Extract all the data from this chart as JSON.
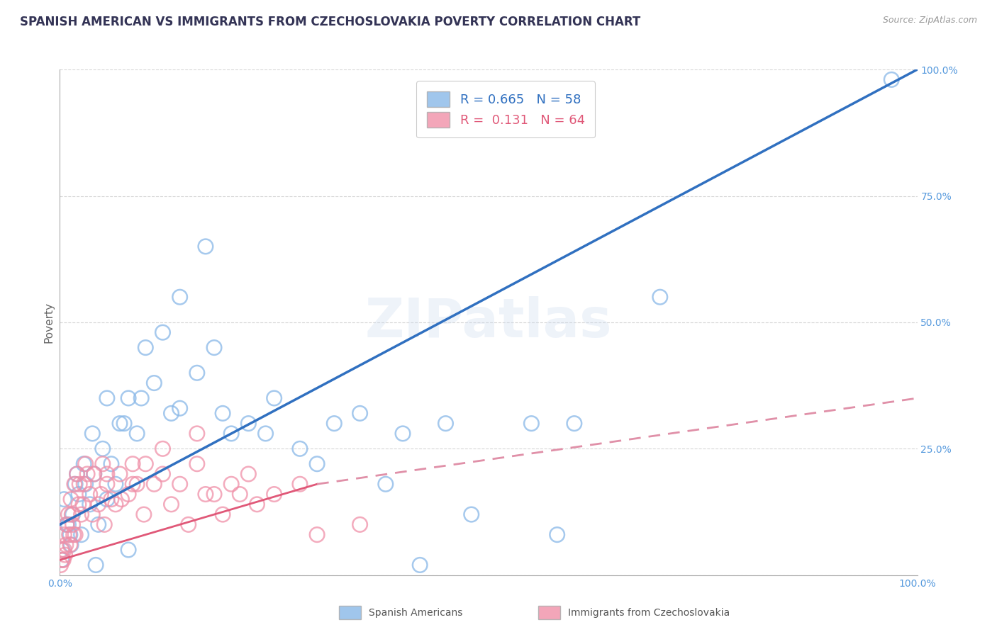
{
  "title": "SPANISH AMERICAN VS IMMIGRANTS FROM CZECHOSLOVAKIA POVERTY CORRELATION CHART",
  "source": "Source: ZipAtlas.com",
  "ylabel": "Poverty",
  "watermark": "ZIPatlas",
  "series1_label": "Spanish Americans",
  "series2_label": "Immigrants from Czechoslovakia",
  "series1_color": "#89b8e8",
  "series2_color": "#f090a8",
  "series1_line_color": "#3070c0",
  "series2_line_color": "#e05878",
  "series2_dash_color": "#e090a8",
  "title_fontsize": 12,
  "axis_label_fontsize": 11,
  "tick_fontsize": 10,
  "background_color": "#ffffff",
  "grid_color": "#cccccc",
  "xlim": [
    0,
    100
  ],
  "ylim": [
    0,
    100
  ],
  "tick_color": "#5599dd",
  "blue_line": [
    0,
    100,
    10,
    100
  ],
  "pink_solid_line": [
    0,
    30,
    3,
    18
  ],
  "pink_dash_line": [
    30,
    100,
    18,
    35
  ],
  "legend_R1": "R = 0.665",
  "legend_N1": "N = 58",
  "legend_R2": "R =  0.131",
  "legend_N2": "N = 64",
  "blue1_x": [
    0.5,
    1.0,
    1.2,
    1.5,
    2.0,
    2.2,
    2.5,
    3.0,
    3.5,
    4.0,
    4.5,
    5.0,
    5.5,
    6.0,
    6.5,
    7.0,
    8.0,
    9.0,
    10.0,
    11.0,
    12.0,
    13.0,
    14.0,
    16.0,
    18.0,
    20.0,
    22.0,
    25.0,
    28.0,
    32.0,
    35.0,
    40.0,
    45.0,
    55.0,
    60.0,
    70.0,
    97.0,
    0.3,
    0.8,
    1.8,
    2.8,
    3.8,
    5.5,
    7.5,
    9.5,
    14.0,
    19.0,
    24.0,
    30.0,
    38.0,
    48.0,
    58.0,
    0.2,
    1.3,
    4.2,
    8.0,
    17.0,
    42.0
  ],
  "blue1_y": [
    15.0,
    10.0,
    8.0,
    12.0,
    20.0,
    16.0,
    8.0,
    18.0,
    14.0,
    20.0,
    10.0,
    25.0,
    15.0,
    22.0,
    18.0,
    30.0,
    35.0,
    28.0,
    45.0,
    38.0,
    48.0,
    32.0,
    55.0,
    40.0,
    45.0,
    28.0,
    30.0,
    35.0,
    25.0,
    30.0,
    32.0,
    28.0,
    30.0,
    30.0,
    30.0,
    55.0,
    98.0,
    5.0,
    10.0,
    18.0,
    22.0,
    28.0,
    35.0,
    30.0,
    35.0,
    33.0,
    32.0,
    28.0,
    22.0,
    18.0,
    12.0,
    8.0,
    3.0,
    6.0,
    2.0,
    5.0,
    65.0,
    2.0
  ],
  "pink2_x": [
    0.2,
    0.4,
    0.5,
    0.6,
    0.8,
    1.0,
    1.1,
    1.2,
    1.3,
    1.5,
    1.7,
    1.8,
    2.0,
    2.2,
    2.5,
    2.8,
    3.0,
    3.5,
    4.0,
    4.5,
    5.0,
    5.5,
    6.0,
    7.0,
    8.0,
    9.0,
    10.0,
    11.0,
    12.0,
    14.0,
    16.0,
    18.0,
    20.0,
    22.0,
    25.0,
    28.0,
    0.3,
    0.7,
    1.4,
    2.3,
    3.2,
    4.8,
    6.5,
    8.5,
    13.0,
    17.0,
    23.0,
    0.1,
    0.5,
    1.6,
    2.7,
    3.8,
    5.2,
    7.2,
    9.8,
    15.0,
    19.0,
    21.0,
    30.0,
    35.0,
    12.0,
    16.0,
    8.5,
    5.5
  ],
  "pink2_y": [
    5.0,
    3.0,
    8.0,
    4.0,
    10.0,
    12.0,
    8.0,
    6.0,
    15.0,
    10.0,
    18.0,
    8.0,
    20.0,
    14.0,
    12.0,
    18.0,
    22.0,
    16.0,
    20.0,
    14.0,
    22.0,
    18.0,
    15.0,
    20.0,
    16.0,
    18.0,
    22.0,
    18.0,
    20.0,
    18.0,
    22.0,
    16.0,
    18.0,
    20.0,
    16.0,
    18.0,
    3.0,
    6.0,
    12.0,
    18.0,
    20.0,
    16.0,
    14.0,
    18.0,
    14.0,
    16.0,
    14.0,
    2.0,
    5.0,
    8.0,
    14.0,
    12.0,
    10.0,
    15.0,
    12.0,
    10.0,
    12.0,
    16.0,
    8.0,
    10.0,
    25.0,
    28.0,
    22.0,
    20.0
  ]
}
